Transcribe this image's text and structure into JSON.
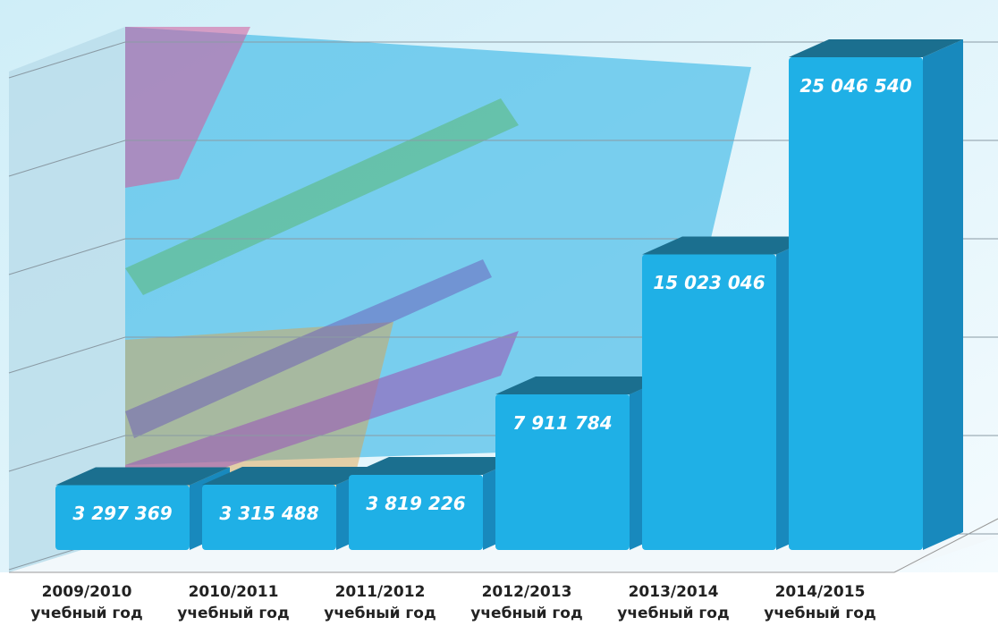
{
  "chart_data": {
    "type": "bar3d",
    "categories": [
      "2009/2010 учебный год",
      "2010/2011 учебный год",
      "2011/2012 учебный год",
      "2012/2013 учебный год",
      "2013/2014 учебный год",
      "2014/2015 учебный год"
    ],
    "values": [
      3297369,
      3315488,
      3819226,
      7911784,
      15023046,
      25046540
    ],
    "value_labels": [
      "3 297 369",
      "3 315 488",
      "3 819 226",
      "7 911 784",
      "15 023 046",
      "25 046 540"
    ],
    "color": "#1fb0e6",
    "ylim": [
      0,
      27500000
    ],
    "yticks": [
      0,
      5000000,
      10000000,
      15000000,
      20000000,
      25000000
    ],
    "grid": true
  }
}
